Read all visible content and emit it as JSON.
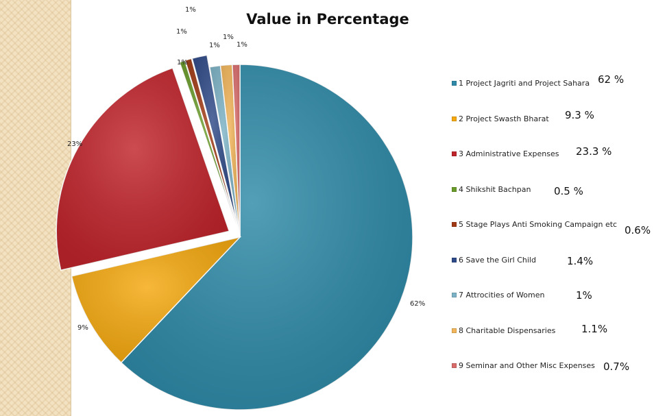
{
  "chart_data": {
    "type": "pie",
    "title": "Value in Percentage",
    "categories": [
      "1 Project Jagriti and Project Sahara",
      "2 Project Swasth Bharat",
      "3 Administrative Expenses",
      "4 Shikshit Bachpan",
      "5 Stage Plays Anti Smoking Campaign etc",
      "6 Save the Girl Child",
      "7 Attrocities of Women",
      "8 Charitable Dispensaries",
      "9 Seminar and Other Misc Expenses"
    ],
    "values": [
      62,
      9.3,
      23.3,
      0.5,
      0.6,
      1.4,
      1,
      1.1,
      0.7
    ],
    "data_labels": [
      "62%",
      "9%",
      "23%",
      "1%",
      "1%",
      "1%",
      "1%",
      "1%",
      "1%"
    ],
    "legend_values": [
      "62 %",
      "9.3 %",
      "23.3 %",
      "0.5 %",
      "0.6%",
      "1.4%",
      "1%",
      "1.1%",
      "0.7%"
    ],
    "colors": [
      "#2e8aa8",
      "#f5a90f",
      "#c0242b",
      "#6a9c2a",
      "#a13a14",
      "#2f4a88",
      "#7db3c6",
      "#f2b55a",
      "#d96b6b"
    ],
    "exploded": [
      false,
      false,
      true,
      true,
      true,
      true,
      false,
      false,
      false
    ],
    "legend_position": "right"
  }
}
